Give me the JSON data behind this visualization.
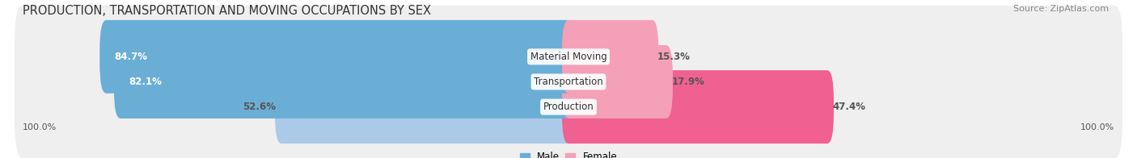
{
  "title": "PRODUCTION, TRANSPORTATION AND MOVING OCCUPATIONS BY SEX",
  "source": "Source: ZipAtlas.com",
  "categories": [
    "Production",
    "Transportation",
    "Material Moving"
  ],
  "male_pct": [
    52.6,
    82.1,
    84.7
  ],
  "female_pct": [
    47.4,
    17.9,
    15.3
  ],
  "male_color": [
    "#AACAE8",
    "#6aaed6",
    "#6aaed6"
  ],
  "female_color": [
    "#F06090",
    "#F4A0B8",
    "#F4A0B8"
  ],
  "bg_row_color": "#EFEFEF",
  "label_male_pct": [
    "52.6%",
    "82.1%",
    "84.7%"
  ],
  "label_female_pct": [
    "47.4%",
    "17.9%",
    "15.3%"
  ],
  "male_label_inside": [
    false,
    true,
    true
  ],
  "female_label_inside": [
    false,
    false,
    false
  ],
  "axis_labels": [
    "100.0%",
    "100.0%"
  ],
  "legend_male": "Male",
  "legend_female": "Female",
  "title_fontsize": 10.5,
  "source_fontsize": 8,
  "bar_label_fontsize": 8.5,
  "cat_label_fontsize": 8.5
}
